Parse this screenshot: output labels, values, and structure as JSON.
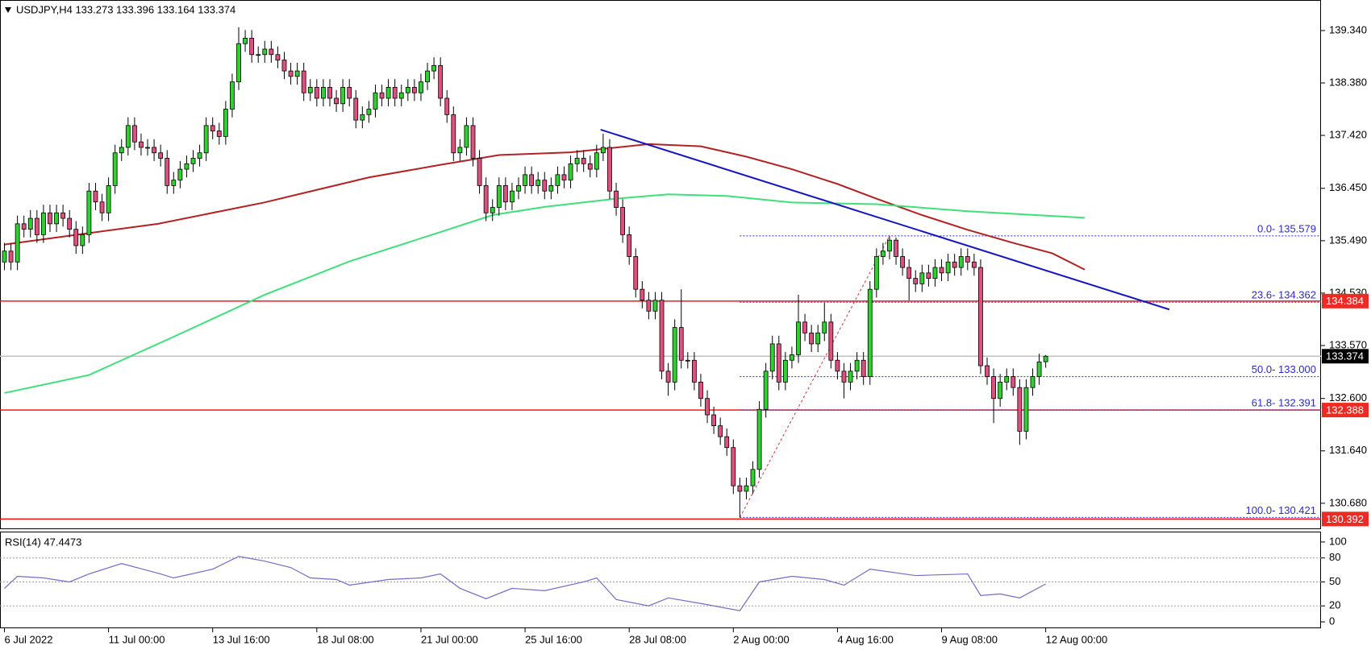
{
  "chart_data": {
    "type": "candlestick",
    "title": "USDJPY,H4  133.273 133.396 133.164 133.374",
    "xlim": [
      -0.68,
      202.3
    ],
    "xticks": [
      {
        "value": 0,
        "label": "6 Jul 2022"
      },
      {
        "value": 16,
        "label": "11 Jul 00:00"
      },
      {
        "value": 32,
        "label": "13 Jul 16:00"
      },
      {
        "value": 48,
        "label": "18 Jul 08:00"
      },
      {
        "value": 64,
        "label": "21 Jul 00:00"
      },
      {
        "value": 80,
        "label": "25 Jul 16:00"
      },
      {
        "value": 96,
        "label": "28 Jul 08:00"
      },
      {
        "value": 112,
        "label": "2 Aug 00:00"
      },
      {
        "value": 128,
        "label": "4 Aug 16:00"
      },
      {
        "value": 144,
        "label": "9 Aug 08:00"
      },
      {
        "value": 160,
        "label": "12 Aug 00:00"
      }
    ],
    "ylim": [
      130.22,
      139.9
    ],
    "yticks": [
      {
        "value": 139.34,
        "label": "139.340"
      },
      {
        "value": 138.38,
        "label": "138.380"
      },
      {
        "value": 137.42,
        "label": "137.420"
      },
      {
        "value": 136.45,
        "label": "136.450"
      },
      {
        "value": 135.49,
        "label": "135.490"
      },
      {
        "value": 134.53,
        "label": "134.530"
      },
      {
        "value": 133.57,
        "label": "133.570"
      },
      {
        "value": 132.6,
        "label": "132.600"
      },
      {
        "value": 131.64,
        "label": "131.640"
      },
      {
        "value": 130.68,
        "label": "130.680"
      }
    ],
    "up_color": "#2fd12f",
    "down_color": "#e0507f",
    "open": [
      135.1,
      135.3,
      135.1,
      135.8,
      135.7,
      135.9,
      135.6,
      136.0,
      135.8,
      136.0,
      135.9,
      135.7,
      135.4,
      135.6,
      136.4,
      136.2,
      136.0,
      136.5,
      137.1,
      137.2,
      137.6,
      137.3,
      137.2,
      137.2,
      137.1,
      137.0,
      136.5,
      136.6,
      136.8,
      136.9,
      137.0,
      137.1,
      137.6,
      137.5,
      137.4,
      137.9,
      138.4,
      139.1,
      139.2,
      138.9,
      138.9,
      139.0,
      138.9,
      138.8,
      138.6,
      138.5,
      138.6,
      138.2,
      138.3,
      138.1,
      138.3,
      138.1,
      138.0,
      138.3,
      138.1,
      137.7,
      137.8,
      137.9,
      138.2,
      138.1,
      138.3,
      138.1,
      138.2,
      138.3,
      138.2,
      138.4,
      138.6,
      138.7,
      138.1,
      137.8,
      137.1,
      137.2,
      137.6,
      137.0,
      136.5,
      136.0,
      136.1,
      136.5,
      136.2,
      136.4,
      136.5,
      136.7,
      136.5,
      136.6,
      136.4,
      136.5,
      136.7,
      136.6,
      136.9,
      137.0,
      136.9,
      136.8,
      137.1,
      137.2,
      136.4,
      136.1,
      135.6,
      135.2,
      134.6,
      134.4,
      134.2,
      134.4,
      133.1,
      132.9,
      133.9,
      133.3,
      133.3,
      132.9,
      132.6,
      132.3,
      132.1,
      131.9,
      131.7,
      131.0,
      130.9,
      131.0,
      131.3,
      132.4,
      133.1,
      133.6,
      132.9,
      133.3,
      133.4,
      134.0,
      133.8,
      133.6,
      133.8,
      134.0,
      133.3,
      133.1,
      132.9,
      133.1,
      133.3,
      133.0,
      134.6,
      135.2,
      135.3,
      135.5,
      135.2,
      135.0,
      134.8,
      134.7,
      134.9,
      134.8,
      135.0,
      134.9,
      135.1,
      135.0,
      135.2,
      135.1,
      135.0,
      133.2,
      133.0,
      132.6,
      132.9,
      133.0,
      132.8,
      132.0,
      132.8,
      133.0,
      133.273
    ],
    "high": [
      135.45,
      135.45,
      135.95,
      135.95,
      136.05,
      136.05,
      136.15,
      136.15,
      136.15,
      136.15,
      136.05,
      135.85,
      135.75,
      136.55,
      136.55,
      136.35,
      136.65,
      137.25,
      137.35,
      137.75,
      137.75,
      137.45,
      137.35,
      137.35,
      137.25,
      137.15,
      136.75,
      136.95,
      137.05,
      137.15,
      137.25,
      137.75,
      137.75,
      137.65,
      138.05,
      138.55,
      139.4,
      139.35,
      139.35,
      139.05,
      139.15,
      139.15,
      139.05,
      138.95,
      138.75,
      138.75,
      138.75,
      138.45,
      138.45,
      138.45,
      138.45,
      138.25,
      138.45,
      138.45,
      138.25,
      137.95,
      138.05,
      138.35,
      138.35,
      138.45,
      138.45,
      138.35,
      138.45,
      138.45,
      138.55,
      138.75,
      138.85,
      138.85,
      138.25,
      137.95,
      137.35,
      137.75,
      137.75,
      137.15,
      136.65,
      136.25,
      136.65,
      136.65,
      136.55,
      136.65,
      136.85,
      136.85,
      136.75,
      136.75,
      136.65,
      136.85,
      136.85,
      137.05,
      137.15,
      137.15,
      137.05,
      137.25,
      137.45,
      137.35,
      136.55,
      136.25,
      135.75,
      135.35,
      134.75,
      134.55,
      134.55,
      134.55,
      133.25,
      134.05,
      134.6,
      133.45,
      133.45,
      133.05,
      132.75,
      132.45,
      132.25,
      132.05,
      131.85,
      131.15,
      131.15,
      131.45,
      132.55,
      133.25,
      133.75,
      133.75,
      133.45,
      133.55,
      134.5,
      134.15,
      133.95,
      133.95,
      134.35,
      134.15,
      133.45,
      133.25,
      133.25,
      133.45,
      133.45,
      134.75,
      135.35,
      135.45,
      135.58,
      135.55,
      135.35,
      135.15,
      134.95,
      135.05,
      135.05,
      135.15,
      135.15,
      135.25,
      135.25,
      135.35,
      135.35,
      135.25,
      135.15,
      133.35,
      133.15,
      133.05,
      133.15,
      133.15,
      132.95,
      132.95,
      133.15,
      133.42,
      133.396
    ],
    "low": [
      134.95,
      134.95,
      134.95,
      135.55,
      135.55,
      135.45,
      135.45,
      135.65,
      135.65,
      135.75,
      135.55,
      135.25,
      135.25,
      135.45,
      136.05,
      135.85,
      135.85,
      136.35,
      136.95,
      137.05,
      137.15,
      137.05,
      137.05,
      136.95,
      136.85,
      136.35,
      136.35,
      136.45,
      136.65,
      136.75,
      136.85,
      136.95,
      137.35,
      137.25,
      137.25,
      137.75,
      138.25,
      138.95,
      138.75,
      138.75,
      138.75,
      138.75,
      138.65,
      138.45,
      138.35,
      138.35,
      138.05,
      138.05,
      137.95,
      137.95,
      137.95,
      137.85,
      137.85,
      137.95,
      137.55,
      137.55,
      137.65,
      137.75,
      137.95,
      137.95,
      137.95,
      137.95,
      138.05,
      138.05,
      138.05,
      138.25,
      138.45,
      137.95,
      137.65,
      136.95,
      136.95,
      137.05,
      136.85,
      136.35,
      135.85,
      135.85,
      135.95,
      136.05,
      136.05,
      136.25,
      136.35,
      136.35,
      136.35,
      136.25,
      136.25,
      136.35,
      136.45,
      136.45,
      136.75,
      136.75,
      136.65,
      136.65,
      136.95,
      136.25,
      135.95,
      135.45,
      135.05,
      134.45,
      134.25,
      134.05,
      134.05,
      132.95,
      132.65,
      132.75,
      133.15,
      133.15,
      132.75,
      132.45,
      132.15,
      131.95,
      131.75,
      131.55,
      130.85,
      130.42,
      130.75,
      130.85,
      131.15,
      132.25,
      132.95,
      132.75,
      132.75,
      133.15,
      133.25,
      133.65,
      133.45,
      133.45,
      133.65,
      133.15,
      132.95,
      132.6,
      132.75,
      132.95,
      132.85,
      132.85,
      134.45,
      135.05,
      135.15,
      135.05,
      134.85,
      134.4,
      134.55,
      134.55,
      134.65,
      134.65,
      134.75,
      134.75,
      134.85,
      134.85,
      134.95,
      134.85,
      133.05,
      132.85,
      132.15,
      132.45,
      132.75,
      132.65,
      131.75,
      131.85,
      132.65,
      132.85,
      133.164
    ],
    "close": [
      135.3,
      135.1,
      135.8,
      135.7,
      135.9,
      135.6,
      136.0,
      135.8,
      136.0,
      135.9,
      135.7,
      135.4,
      135.6,
      136.4,
      136.2,
      136.0,
      136.5,
      137.1,
      137.2,
      137.6,
      137.3,
      137.2,
      137.2,
      137.1,
      137.0,
      136.5,
      136.6,
      136.8,
      136.9,
      137.0,
      137.1,
      137.6,
      137.5,
      137.4,
      137.9,
      138.4,
      139.1,
      139.2,
      138.9,
      138.9,
      139.0,
      138.9,
      138.8,
      138.6,
      138.5,
      138.6,
      138.2,
      138.3,
      138.1,
      138.3,
      138.1,
      138.0,
      138.3,
      138.1,
      137.7,
      137.8,
      137.9,
      138.2,
      138.1,
      138.3,
      138.1,
      138.2,
      138.3,
      138.2,
      138.4,
      138.6,
      138.7,
      138.1,
      137.8,
      137.1,
      137.2,
      137.6,
      137.0,
      136.5,
      136.0,
      136.1,
      136.5,
      136.2,
      136.4,
      136.5,
      136.7,
      136.5,
      136.6,
      136.4,
      136.5,
      136.7,
      136.6,
      136.9,
      137.0,
      136.9,
      136.8,
      137.1,
      137.2,
      136.4,
      136.1,
      135.6,
      135.2,
      134.6,
      134.4,
      134.2,
      134.4,
      133.1,
      132.9,
      133.9,
      133.3,
      133.3,
      132.9,
      132.6,
      132.3,
      132.1,
      131.9,
      131.7,
      131.0,
      130.9,
      131.0,
      131.3,
      132.4,
      133.1,
      133.6,
      132.9,
      133.3,
      133.4,
      134.0,
      133.8,
      133.6,
      133.8,
      134.0,
      133.3,
      133.1,
      132.9,
      133.1,
      133.3,
      133.0,
      134.6,
      135.2,
      135.3,
      135.5,
      135.2,
      135.0,
      134.8,
      134.7,
      134.9,
      134.8,
      135.0,
      134.9,
      135.1,
      135.0,
      135.2,
      135.1,
      135.0,
      133.2,
      133.0,
      132.6,
      132.9,
      133.0,
      132.8,
      132.0,
      132.8,
      133.0,
      133.27,
      133.374
    ],
    "moving_averages": [
      {
        "color": "#b22222",
        "x": [
          0,
          23.6,
          39.9,
          56,
          67,
          76,
          87,
          99,
          107,
          114,
          121,
          128,
          134,
          141,
          148,
          155,
          161,
          166
        ],
        "values": [
          135.42,
          135.8,
          136.19,
          136.65,
          136.88,
          137.06,
          137.11,
          137.26,
          137.22,
          137.03,
          136.8,
          136.53,
          136.26,
          135.96,
          135.69,
          135.45,
          135.26,
          134.96
        ]
      },
      {
        "color": "#3ee07a",
        "x": [
          0,
          13,
          26,
          40,
          53,
          67,
          75,
          83,
          94,
          102,
          111,
          121,
          134,
          148,
          166
        ],
        "values": [
          132.7,
          133.03,
          133.73,
          134.5,
          135.11,
          135.65,
          135.96,
          136.11,
          136.26,
          136.34,
          136.31,
          136.19,
          136.16,
          136.03,
          135.91
        ]
      }
    ],
    "trendline": {
      "color": "#1515c0",
      "x": [
        91.6,
        179
      ],
      "values": [
        137.525,
        134.23
      ]
    },
    "fibonacci": {
      "color": "#e03030",
      "level_color": "#2a2ad0",
      "x": [
        113,
        136
      ],
      "values": [
        130.421,
        135.579
      ],
      "levels": [
        {
          "value": 135.579,
          "label": "0.0- 135.579"
        },
        {
          "value": 134.362,
          "label": "23.6- 134.362"
        },
        {
          "value": 133.0,
          "label": "50.0- 133.000"
        },
        {
          "value": 132.391,
          "label": "61.8- 132.391"
        },
        {
          "value": 130.421,
          "label": "100.0- 130.421"
        }
      ]
    },
    "hlines": [
      {
        "value": 134.384,
        "color": "#ff0000"
      },
      {
        "value": 133.374,
        "color": "#c0c0c0"
      },
      {
        "value": 132.388,
        "color": "#ff0000"
      },
      {
        "value": 130.392,
        "color": "#ff0000"
      }
    ],
    "price_tags": [
      {
        "value": 134.384,
        "color": "#ee2a24"
      },
      {
        "value": 133.374,
        "color": "#000000"
      },
      {
        "value": 132.388,
        "color": "#ee2a24"
      },
      {
        "value": 130.392,
        "color": "#ee2a24"
      }
    ],
    "rsi": {
      "label": "RSI(14) 47.4473",
      "color": "#7b68c8",
      "ylim": [
        -8,
        112
      ],
      "yticks": [
        100,
        80,
        50,
        20,
        0
      ],
      "levels": [
        80,
        50,
        20
      ],
      "x": [
        0,
        2,
        6,
        10,
        13,
        18,
        24,
        26,
        32,
        36,
        40,
        44,
        47,
        51,
        53,
        59,
        64,
        67,
        70,
        74,
        78,
        83,
        89,
        91,
        94,
        99,
        102,
        107,
        113,
        116,
        121,
        126,
        129,
        133,
        140,
        148,
        150,
        153,
        156,
        160
      ],
      "values": [
        42,
        57,
        55,
        50,
        60,
        73,
        60,
        55,
        66,
        82,
        76,
        68,
        55,
        53,
        46,
        53,
        55,
        60,
        42,
        29,
        42,
        39,
        50,
        55,
        28,
        20,
        30,
        23,
        14,
        50,
        57,
        53,
        46,
        66,
        58,
        60,
        33,
        35,
        30,
        47.4473
      ]
    }
  }
}
